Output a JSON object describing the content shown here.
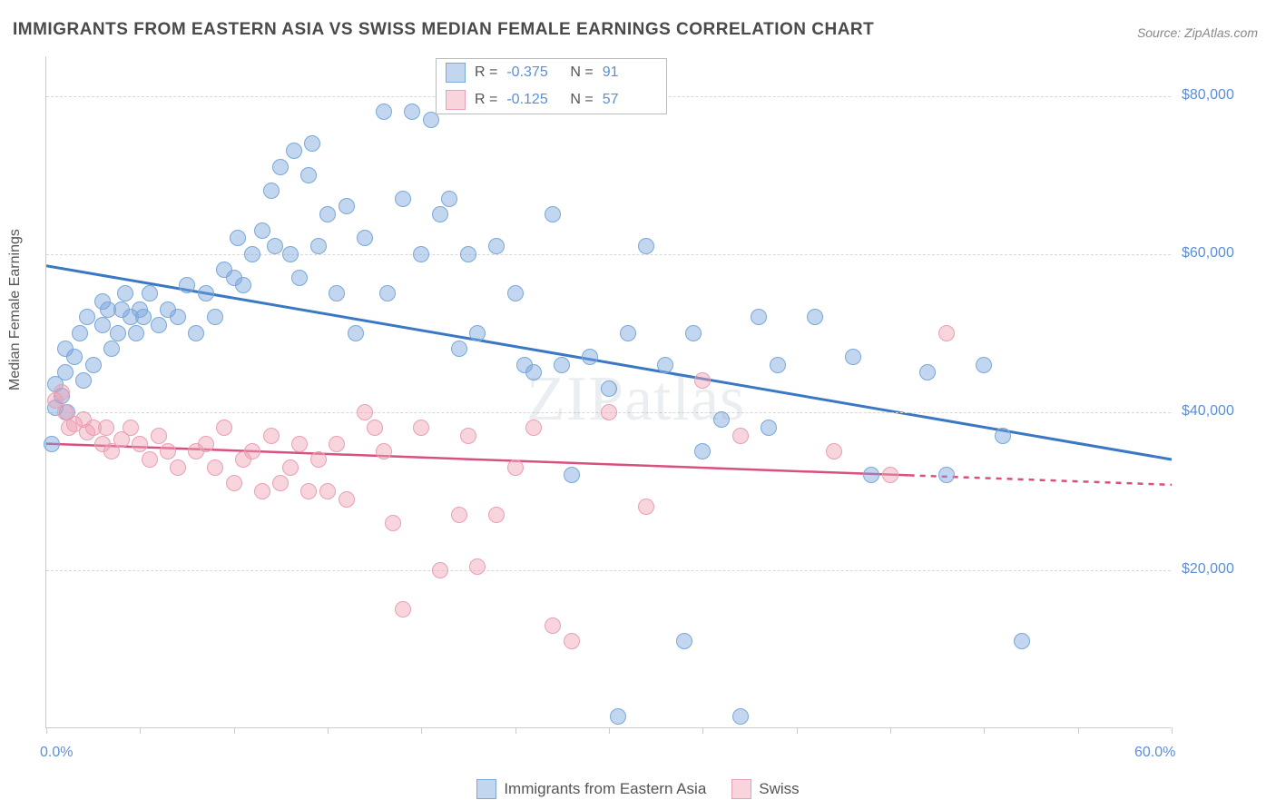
{
  "title": "IMMIGRANTS FROM EASTERN ASIA VS SWISS MEDIAN FEMALE EARNINGS CORRELATION CHART",
  "source": "Source: ZipAtlas.com",
  "watermark": "ZIPatlas",
  "chart": {
    "type": "scatter",
    "xlim": [
      0,
      60
    ],
    "ylim": [
      0,
      85000
    ],
    "x_tick_positions": [
      0,
      5,
      10,
      15,
      20,
      25,
      30,
      35,
      40,
      45,
      50,
      55,
      60
    ],
    "x_tick_labels_shown": {
      "0": "0.0%",
      "60": "60.0%"
    },
    "y_ticks": [
      20000,
      40000,
      60000,
      80000
    ],
    "y_tick_labels": [
      "$20,000",
      "$40,000",
      "$60,000",
      "$80,000"
    ],
    "y_axis_label": "Median Female Earnings",
    "grid_color": "#d8d8d8",
    "background_color": "#ffffff",
    "border_color": "#cccccc",
    "series": [
      {
        "name": "Immigrants from Eastern Asia",
        "color_fill": "rgba(120,165,220,0.45)",
        "color_stroke": "#7aa8d8",
        "trend_color": "#3b78c4",
        "trend_width": 3,
        "R": "-0.375",
        "N": "91",
        "trend": {
          "x1": 0,
          "y1": 58500,
          "x2": 60,
          "y2": 34000
        },
        "points": [
          [
            0.3,
            36000
          ],
          [
            0.5,
            40500
          ],
          [
            0.5,
            43500
          ],
          [
            0.8,
            42000
          ],
          [
            1.0,
            45000
          ],
          [
            1.0,
            48000
          ],
          [
            1.1,
            40000
          ],
          [
            1.5,
            47000
          ],
          [
            1.8,
            50000
          ],
          [
            2.0,
            44000
          ],
          [
            2.2,
            52000
          ],
          [
            2.5,
            46000
          ],
          [
            3.0,
            51000
          ],
          [
            3.0,
            54000
          ],
          [
            3.3,
            53000
          ],
          [
            3.5,
            48000
          ],
          [
            3.8,
            50000
          ],
          [
            4.0,
            53000
          ],
          [
            4.2,
            55000
          ],
          [
            4.5,
            52000
          ],
          [
            4.8,
            50000
          ],
          [
            5.0,
            53000
          ],
          [
            5.2,
            52000
          ],
          [
            5.5,
            55000
          ],
          [
            6.0,
            51000
          ],
          [
            6.5,
            53000
          ],
          [
            7.0,
            52000
          ],
          [
            7.5,
            56000
          ],
          [
            8.0,
            50000
          ],
          [
            8.5,
            55000
          ],
          [
            9.0,
            52000
          ],
          [
            9.5,
            58000
          ],
          [
            10.0,
            57000
          ],
          [
            10.2,
            62000
          ],
          [
            10.5,
            56000
          ],
          [
            11.0,
            60000
          ],
          [
            11.5,
            63000
          ],
          [
            12.0,
            68000
          ],
          [
            12.2,
            61000
          ],
          [
            12.5,
            71000
          ],
          [
            13.0,
            60000
          ],
          [
            13.2,
            73000
          ],
          [
            13.5,
            57000
          ],
          [
            14.0,
            70000
          ],
          [
            14.2,
            74000
          ],
          [
            14.5,
            61000
          ],
          [
            15.0,
            65000
          ],
          [
            15.5,
            55000
          ],
          [
            16.0,
            66000
          ],
          [
            16.5,
            50000
          ],
          [
            17.0,
            62000
          ],
          [
            18.0,
            78000
          ],
          [
            18.2,
            55000
          ],
          [
            19.0,
            67000
          ],
          [
            19.5,
            78000
          ],
          [
            20.0,
            60000
          ],
          [
            20.5,
            77000
          ],
          [
            21.0,
            65000
          ],
          [
            21.5,
            67000
          ],
          [
            22.0,
            48000
          ],
          [
            22.5,
            60000
          ],
          [
            23.0,
            50000
          ],
          [
            24.0,
            61000
          ],
          [
            25.0,
            55000
          ],
          [
            25.5,
            46000
          ],
          [
            26.0,
            45000
          ],
          [
            27.0,
            65000
          ],
          [
            27.5,
            46000
          ],
          [
            28.0,
            32000
          ],
          [
            29.0,
            47000
          ],
          [
            30.0,
            43000
          ],
          [
            30.5,
            1500
          ],
          [
            31.0,
            50000
          ],
          [
            32.0,
            61000
          ],
          [
            33.0,
            46000
          ],
          [
            34.0,
            11000
          ],
          [
            34.5,
            50000
          ],
          [
            35.0,
            35000
          ],
          [
            36.0,
            39000
          ],
          [
            37.0,
            1500
          ],
          [
            38.0,
            52000
          ],
          [
            38.5,
            38000
          ],
          [
            39.0,
            46000
          ],
          [
            41.0,
            52000
          ],
          [
            43.0,
            47000
          ],
          [
            44.0,
            32000
          ],
          [
            47.0,
            45000
          ],
          [
            48.0,
            32000
          ],
          [
            50.0,
            46000
          ],
          [
            51.0,
            37000
          ],
          [
            52.0,
            11000
          ]
        ]
      },
      {
        "name": "Swiss",
        "color_fill": "rgba(240,160,180,0.45)",
        "color_stroke": "#e8a0b5",
        "trend_color": "#d85080",
        "trend_width": 2.5,
        "R": "-0.125",
        "N": "57",
        "trend": {
          "x1": 0,
          "y1": 36000,
          "x2": 46,
          "y2": 32000
        },
        "trend_dashed": {
          "x1": 46,
          "y1": 32000,
          "x2": 60,
          "y2": 30800
        },
        "points": [
          [
            0.5,
            41500
          ],
          [
            0.8,
            42500
          ],
          [
            1.0,
            40000
          ],
          [
            1.2,
            38000
          ],
          [
            1.5,
            38500
          ],
          [
            2.0,
            39000
          ],
          [
            2.2,
            37500
          ],
          [
            2.5,
            38000
          ],
          [
            3.0,
            36000
          ],
          [
            3.2,
            38000
          ],
          [
            3.5,
            35000
          ],
          [
            4.0,
            36500
          ],
          [
            4.5,
            38000
          ],
          [
            5.0,
            36000
          ],
          [
            5.5,
            34000
          ],
          [
            6.0,
            37000
          ],
          [
            6.5,
            35000
          ],
          [
            7.0,
            33000
          ],
          [
            8.0,
            35000
          ],
          [
            8.5,
            36000
          ],
          [
            9.0,
            33000
          ],
          [
            9.5,
            38000
          ],
          [
            10.0,
            31000
          ],
          [
            10.5,
            34000
          ],
          [
            11.0,
            35000
          ],
          [
            11.5,
            30000
          ],
          [
            12.0,
            37000
          ],
          [
            12.5,
            31000
          ],
          [
            13.0,
            33000
          ],
          [
            13.5,
            36000
          ],
          [
            14.0,
            30000
          ],
          [
            14.5,
            34000
          ],
          [
            15.0,
            30000
          ],
          [
            15.5,
            36000
          ],
          [
            16.0,
            29000
          ],
          [
            17.0,
            40000
          ],
          [
            17.5,
            38000
          ],
          [
            18.0,
            35000
          ],
          [
            18.5,
            26000
          ],
          [
            19.0,
            15000
          ],
          [
            20.0,
            38000
          ],
          [
            21.0,
            20000
          ],
          [
            22.0,
            27000
          ],
          [
            22.5,
            37000
          ],
          [
            23.0,
            20500
          ],
          [
            24.0,
            27000
          ],
          [
            25.0,
            33000
          ],
          [
            26.0,
            38000
          ],
          [
            27.0,
            13000
          ],
          [
            28.0,
            11000
          ],
          [
            30.0,
            40000
          ],
          [
            32.0,
            28000
          ],
          [
            35.0,
            44000
          ],
          [
            37.0,
            37000
          ],
          [
            42.0,
            35000
          ],
          [
            45.0,
            32000
          ],
          [
            48.0,
            50000
          ]
        ]
      }
    ]
  },
  "legend_top": {
    "r_label": "R =",
    "n_label": "N =",
    "rows": [
      {
        "swatch_fill": "rgba(120,165,220,0.45)",
        "swatch_stroke": "#7aa8d8",
        "R": "-0.375",
        "N": "91"
      },
      {
        "swatch_fill": "rgba(240,160,180,0.45)",
        "swatch_stroke": "#e8a0b5",
        "R": "-0.125",
        "N": "57"
      }
    ]
  },
  "legend_bottom": {
    "items": [
      {
        "swatch_fill": "rgba(120,165,220,0.45)",
        "swatch_stroke": "#7aa8d8",
        "label": "Immigrants from Eastern Asia"
      },
      {
        "swatch_fill": "rgba(240,160,180,0.45)",
        "swatch_stroke": "#e8a0b5",
        "label": "Swiss"
      }
    ]
  }
}
